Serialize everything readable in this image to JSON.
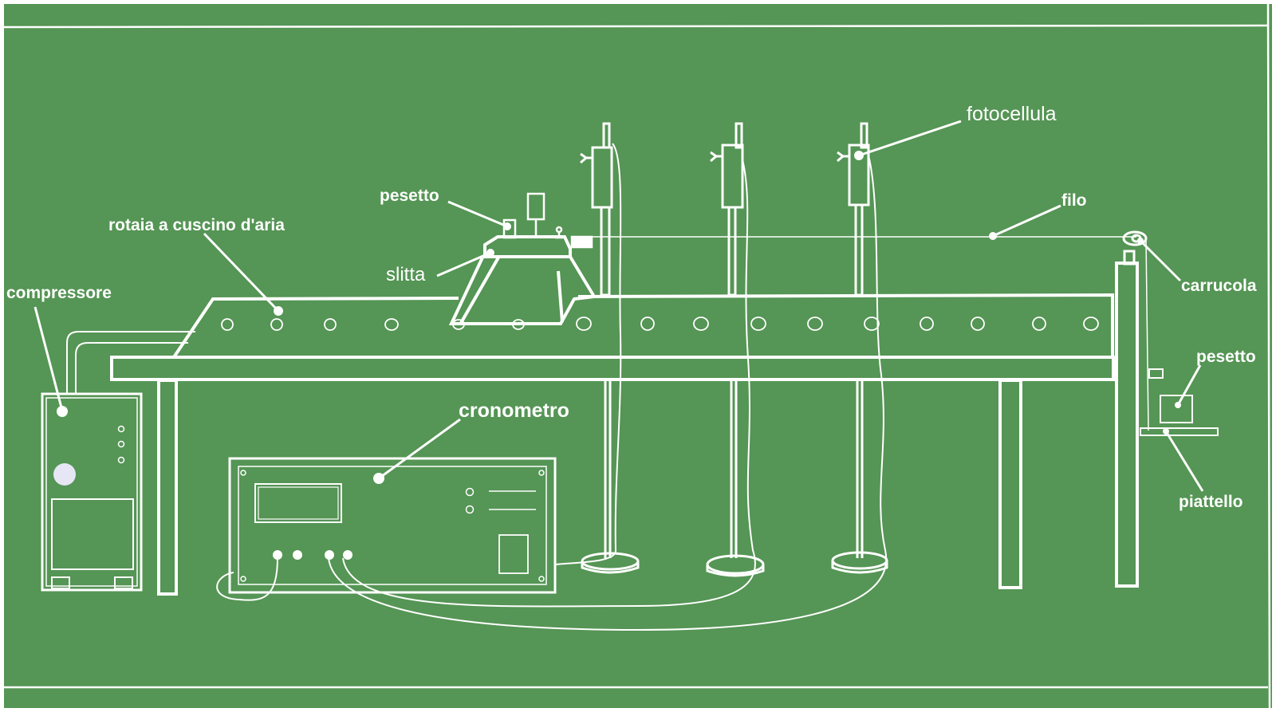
{
  "colors": {
    "background": "#559555",
    "line": "#ffffff",
    "compressor_button": "#e6e6f5"
  },
  "labels": {
    "compressore": "compressore",
    "rotaia": "rotaia a cuscino d'aria",
    "pesetto_top": "pesetto",
    "slitta": "slitta",
    "fotocellula": "fotocellula",
    "filo": "filo",
    "carrucola": "carrucola",
    "pesetto_right": "pesetto",
    "piattello": "piattello",
    "cronometro": "cronometro"
  }
}
